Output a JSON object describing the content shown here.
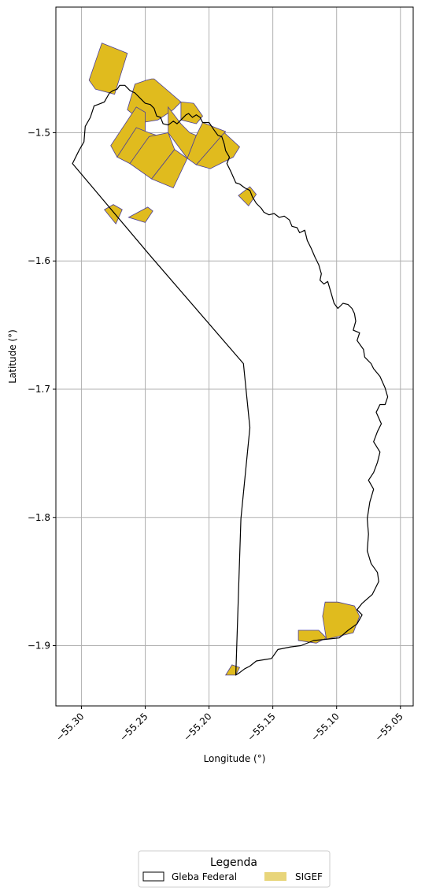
{
  "chart_data": {
    "type": "map",
    "xlabel": "Longitude (°)",
    "ylabel": "Latitude (°)",
    "xlim": [
      -55.32,
      -55.04
    ],
    "ylim": [
      -1.947,
      -1.402
    ],
    "grid": true,
    "x_ticks": [
      -55.3,
      -55.25,
      -55.2,
      -55.15,
      -55.1,
      -55.05
    ],
    "x_tick_labels": [
      "−55.30",
      "−55.25",
      "−55.20",
      "−55.15",
      "−55.10",
      "−55.05"
    ],
    "y_ticks": [
      -1.5,
      -1.6,
      -1.7,
      -1.8,
      -1.9
    ],
    "y_tick_labels": [
      "−1.5",
      "−1.6",
      "−1.7",
      "−1.8",
      "−1.9"
    ],
    "legend": {
      "title": "Legenda",
      "placement": "bottom-center",
      "entries": [
        {
          "label": "Gleba Federal",
          "style": "outline"
        },
        {
          "label": "SIGEF",
          "style": "fill"
        }
      ]
    },
    "colors": {
      "gleba_outline": "#000000",
      "sigef_fill": "#e0bb1e",
      "sigef_edge": "#4a3f9a",
      "sigef_legend": "#e8d57a",
      "grid": "#b0b0b0"
    },
    "gleba_federal": [
      [
        -55.307,
        -1.524
      ],
      [
        -55.302,
        -1.514
      ],
      [
        -55.298,
        -1.507
      ],
      [
        -55.297,
        -1.495
      ],
      [
        -55.293,
        -1.488
      ],
      [
        -55.29,
        -1.479
      ],
      [
        -55.287,
        -1.478
      ],
      [
        -55.282,
        -1.476
      ],
      [
        -55.278,
        -1.469
      ],
      [
        -55.275,
        -1.467
      ],
      [
        -55.272,
        -1.466
      ],
      [
        -55.27,
        -1.463
      ],
      [
        -55.266,
        -1.463
      ],
      [
        -55.262,
        -1.467
      ],
      [
        -55.258,
        -1.469
      ],
      [
        -55.253,
        -1.474
      ],
      [
        -55.25,
        -1.477
      ],
      [
        -55.246,
        -1.478
      ],
      [
        -55.243,
        -1.481
      ],
      [
        -55.241,
        -1.487
      ],
      [
        -55.238,
        -1.488
      ],
      [
        -55.236,
        -1.493
      ],
      [
        -55.232,
        -1.494
      ],
      [
        -55.228,
        -1.491
      ],
      [
        -55.225,
        -1.493
      ],
      [
        -55.222,
        -1.49
      ],
      [
        -55.218,
        -1.486
      ],
      [
        -55.216,
        -1.485
      ],
      [
        -55.213,
        -1.488
      ],
      [
        -55.21,
        -1.486
      ],
      [
        -55.207,
        -1.488
      ],
      [
        -55.205,
        -1.492
      ],
      [
        -55.2,
        -1.492
      ],
      [
        -55.196,
        -1.498
      ],
      [
        -55.193,
        -1.502
      ],
      [
        -55.19,
        -1.503
      ],
      [
        -55.188,
        -1.509
      ],
      [
        -55.187,
        -1.514
      ],
      [
        -55.184,
        -1.519
      ],
      [
        -55.186,
        -1.524
      ],
      [
        -55.183,
        -1.53
      ],
      [
        -55.179,
        -1.539
      ],
      [
        -55.176,
        -1.54
      ],
      [
        -55.172,
        -1.543
      ],
      [
        -55.168,
        -1.545
      ],
      [
        -55.166,
        -1.55
      ],
      [
        -55.163,
        -1.555
      ],
      [
        -55.159,
        -1.559
      ],
      [
        -55.157,
        -1.562
      ],
      [
        -55.153,
        -1.564
      ],
      [
        -55.149,
        -1.563
      ],
      [
        -55.145,
        -1.566
      ],
      [
        -55.141,
        -1.565
      ],
      [
        -55.137,
        -1.568
      ],
      [
        -55.135,
        -1.573
      ],
      [
        -55.131,
        -1.574
      ],
      [
        -55.129,
        -1.578
      ],
      [
        -55.125,
        -1.576
      ],
      [
        -55.123,
        -1.584
      ],
      [
        -55.12,
        -1.59
      ],
      [
        -55.117,
        -1.597
      ],
      [
        -55.114,
        -1.603
      ],
      [
        -55.112,
        -1.61
      ],
      [
        -55.113,
        -1.615
      ],
      [
        -55.11,
        -1.618
      ],
      [
        -55.107,
        -1.616
      ],
      [
        -55.104,
        -1.626
      ],
      [
        -55.102,
        -1.633
      ],
      [
        -55.099,
        -1.637
      ],
      [
        -55.095,
        -1.633
      ],
      [
        -55.091,
        -1.634
      ],
      [
        -55.088,
        -1.637
      ],
      [
        -55.086,
        -1.641
      ],
      [
        -55.085,
        -1.647
      ],
      [
        -55.087,
        -1.654
      ],
      [
        -55.082,
        -1.656
      ],
      [
        -55.084,
        -1.662
      ],
      [
        -55.079,
        -1.669
      ],
      [
        -55.078,
        -1.675
      ],
      [
        -55.073,
        -1.68
      ],
      [
        -55.071,
        -1.684
      ],
      [
        -55.066,
        -1.69
      ],
      [
        -55.062,
        -1.699
      ],
      [
        -55.06,
        -1.706
      ],
      [
        -55.062,
        -1.712
      ],
      [
        -55.066,
        -1.712
      ],
      [
        -55.069,
        -1.718
      ],
      [
        -55.065,
        -1.727
      ],
      [
        -55.068,
        -1.733
      ],
      [
        -55.071,
        -1.741
      ],
      [
        -55.066,
        -1.749
      ],
      [
        -55.068,
        -1.757
      ],
      [
        -55.071,
        -1.765
      ],
      [
        -55.075,
        -1.771
      ],
      [
        -55.071,
        -1.778
      ],
      [
        -55.074,
        -1.788
      ],
      [
        -55.076,
        -1.801
      ],
      [
        -55.075,
        -1.813
      ],
      [
        -55.076,
        -1.826
      ],
      [
        -55.073,
        -1.836
      ],
      [
        -55.068,
        -1.843
      ],
      [
        -55.067,
        -1.85
      ],
      [
        -55.072,
        -1.86
      ],
      [
        -55.08,
        -1.867
      ],
      [
        -55.084,
        -1.872
      ],
      [
        -55.08,
        -1.876
      ],
      [
        -55.084,
        -1.883
      ],
      [
        -55.091,
        -1.888
      ],
      [
        -55.098,
        -1.894
      ],
      [
        -55.108,
        -1.895
      ],
      [
        -55.118,
        -1.896
      ],
      [
        -55.128,
        -1.9
      ],
      [
        -55.136,
        -1.901
      ],
      [
        -55.146,
        -1.903
      ],
      [
        -55.151,
        -1.91
      ],
      [
        -55.157,
        -1.911
      ],
      [
        -55.163,
        -1.912
      ],
      [
        -55.168,
        -1.916
      ],
      [
        -55.172,
        -1.918
      ],
      [
        -55.176,
        -1.921
      ],
      [
        -55.179,
        -1.923
      ],
      [
        -55.175,
        -1.801
      ],
      [
        -55.168,
        -1.73
      ],
      [
        -55.173,
        -1.68
      ],
      [
        -55.246,
        -1.596
      ],
      [
        -55.307,
        -1.524
      ]
    ],
    "sigef_parcels": [
      [
        [
          -55.294,
          -1.459
        ],
        [
          -55.284,
          -1.43
        ],
        [
          -55.264,
          -1.438
        ],
        [
          -55.274,
          -1.47
        ],
        [
          -55.289,
          -1.466
        ]
      ],
      [
        [
          -55.258,
          -1.462
        ],
        [
          -55.249,
          -1.459
        ],
        [
          -55.245,
          -1.458
        ],
        [
          -55.243,
          -1.458
        ],
        [
          -55.222,
          -1.476
        ],
        [
          -55.228,
          -1.482
        ],
        [
          -55.24,
          -1.49
        ],
        [
          -55.252,
          -1.492
        ],
        [
          -55.264,
          -1.482
        ]
      ],
      [
        [
          -55.222,
          -1.476
        ],
        [
          -55.212,
          -1.477
        ],
        [
          -55.205,
          -1.487
        ],
        [
          -55.21,
          -1.493
        ],
        [
          -55.222,
          -1.49
        ]
      ],
      [
        [
          -55.277,
          -1.51
        ],
        [
          -55.257,
          -1.48
        ],
        [
          -55.25,
          -1.484
        ],
        [
          -55.25,
          -1.5
        ],
        [
          -55.272,
          -1.519
        ]
      ],
      [
        [
          -55.272,
          -1.519
        ],
        [
          -55.257,
          -1.496
        ],
        [
          -55.247,
          -1.5
        ],
        [
          -55.241,
          -1.502
        ],
        [
          -55.262,
          -1.524
        ]
      ],
      [
        [
          -55.262,
          -1.524
        ],
        [
          -55.247,
          -1.503
        ],
        [
          -55.232,
          -1.5
        ],
        [
          -55.227,
          -1.513
        ],
        [
          -55.245,
          -1.536
        ]
      ],
      [
        [
          -55.245,
          -1.536
        ],
        [
          -55.227,
          -1.513
        ],
        [
          -55.217,
          -1.52
        ],
        [
          -55.228,
          -1.543
        ]
      ],
      [
        [
          -55.232,
          -1.5
        ],
        [
          -55.232,
          -1.48
        ],
        [
          -55.222,
          -1.493
        ],
        [
          -55.215,
          -1.5
        ],
        [
          -55.21,
          -1.502
        ],
        [
          -55.217,
          -1.52
        ]
      ],
      [
        [
          -55.217,
          -1.52
        ],
        [
          -55.21,
          -1.502
        ],
        [
          -55.205,
          -1.492
        ],
        [
          -55.195,
          -1.496
        ],
        [
          -55.187,
          -1.499
        ],
        [
          -55.21,
          -1.525
        ]
      ],
      [
        [
          -55.21,
          -1.525
        ],
        [
          -55.188,
          -1.5
        ],
        [
          -55.176,
          -1.511
        ],
        [
          -55.181,
          -1.519
        ],
        [
          -55.199,
          -1.528
        ]
      ],
      [
        [
          -55.282,
          -1.56
        ],
        [
          -55.275,
          -1.556
        ],
        [
          -55.268,
          -1.56
        ],
        [
          -55.273,
          -1.571
        ]
      ],
      [
        [
          -55.263,
          -1.566
        ],
        [
          -55.248,
          -1.558
        ],
        [
          -55.244,
          -1.561
        ],
        [
          -55.25,
          -1.57
        ]
      ],
      [
        [
          -55.177,
          -1.549
        ],
        [
          -55.168,
          -1.542
        ],
        [
          -55.163,
          -1.548
        ],
        [
          -55.169,
          -1.557
        ]
      ],
      [
        [
          -55.13,
          -1.888
        ],
        [
          -55.114,
          -1.888
        ],
        [
          -55.108,
          -1.894
        ],
        [
          -55.116,
          -1.898
        ],
        [
          -55.13,
          -1.896
        ]
      ],
      [
        [
          -55.108,
          -1.895
        ],
        [
          -55.087,
          -1.89
        ],
        [
          -55.082,
          -1.877
        ],
        [
          -55.086,
          -1.869
        ],
        [
          -55.099,
          -1.866
        ],
        [
          -55.109,
          -1.866
        ],
        [
          -55.111,
          -1.877
        ]
      ],
      [
        [
          -55.187,
          -1.923
        ],
        [
          -55.179,
          -1.923
        ],
        [
          -55.176,
          -1.917
        ],
        [
          -55.182,
          -1.915
        ]
      ]
    ]
  }
}
